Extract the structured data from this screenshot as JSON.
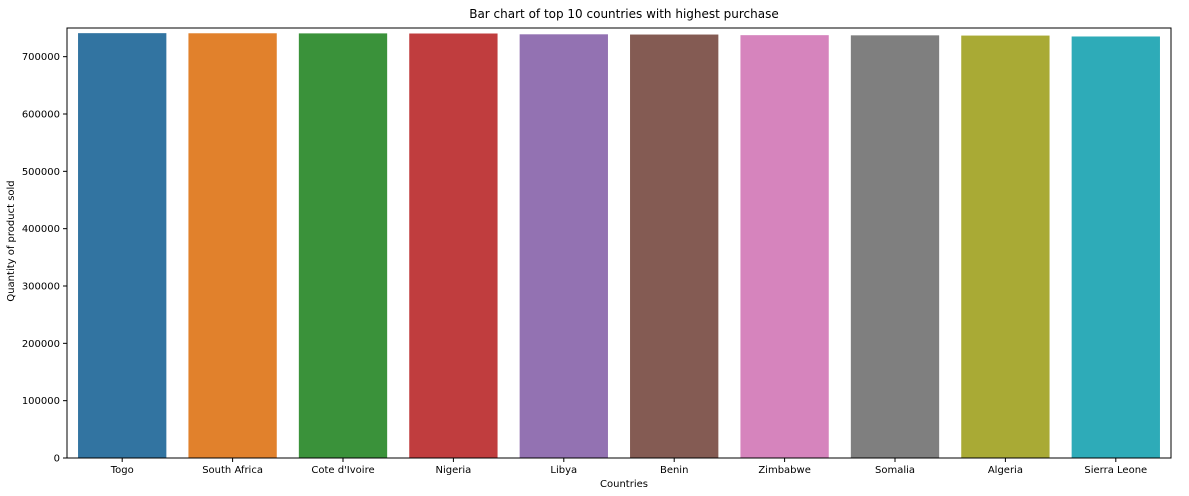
{
  "chart_data": {
    "type": "bar",
    "title": "Bar chart of top 10 countries with highest purchase",
    "xlabel": "Countries",
    "ylabel": "Quantity of product sold",
    "categories": [
      "Togo",
      "South Africa",
      "Cote d'Ivoire",
      "Nigeria",
      "Libya",
      "Benin",
      "Zimbabwe",
      "Somalia",
      "Algeria",
      "Sierra Leone"
    ],
    "values": [
      741000,
      740800,
      740600,
      740400,
      739000,
      738600,
      737500,
      737200,
      736800,
      735200
    ],
    "colors": [
      "#3274a1",
      "#e1812c",
      "#3a923a",
      "#c03d3e",
      "#9372b2",
      "#845b53",
      "#d684bd",
      "#7f7f7f",
      "#a9aa35",
      "#2eabb8"
    ],
    "ylim": [
      0,
      750000
    ],
    "yticks": [
      0,
      100000,
      200000,
      300000,
      400000,
      500000,
      600000,
      700000
    ],
    "ytick_labels": [
      "0",
      "100000",
      "200000",
      "300000",
      "400000",
      "500000",
      "600000",
      "700000"
    ],
    "grid": false,
    "legend": "none"
  }
}
